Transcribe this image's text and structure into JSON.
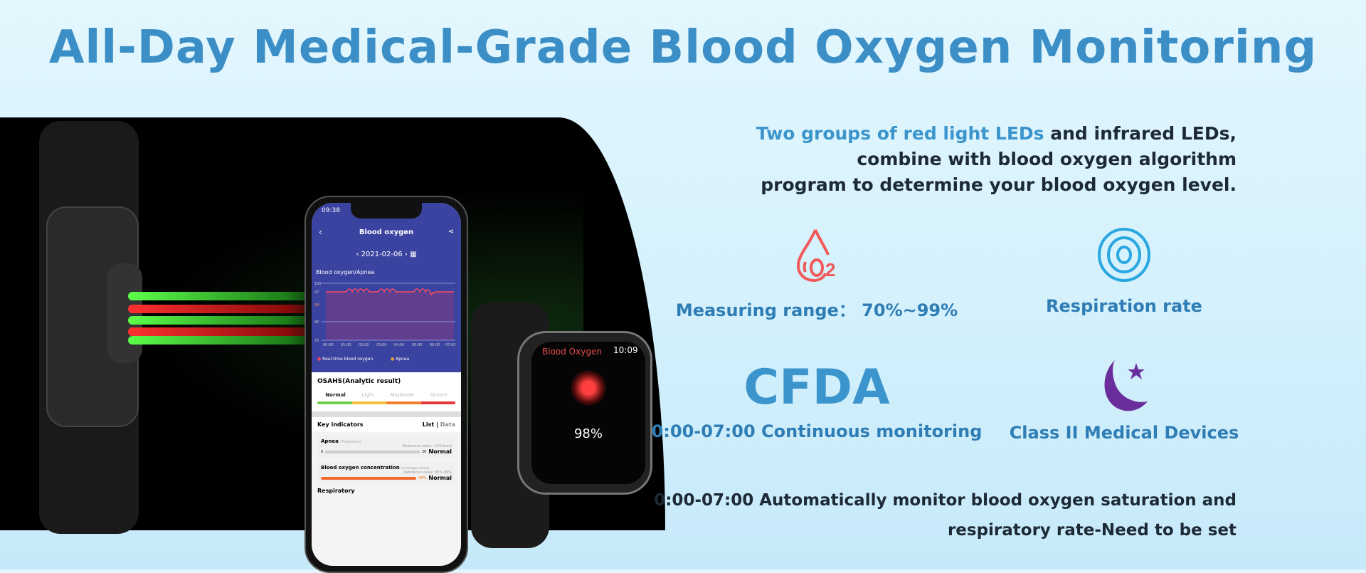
{
  "title": "All-Day Medical-Grade Blood Oxygen Monitoring",
  "intro": {
    "highlight": "Two groups of red light LEDs",
    "line1_rest": " and infrared LEDs,",
    "line2": "combine with blood oxygen algorithm",
    "line3": "program to determine your blood oxygen level."
  },
  "features": [
    {
      "icon": "o2-drop-icon",
      "label": "Measuring range：  70%~99%",
      "color": "#f05a5a"
    },
    {
      "icon": "respiration-rings-icon",
      "label": "Respiration rate",
      "color": "#2aa6e0"
    },
    {
      "icon": "cfda-text",
      "text": "CFDA",
      "label": "0:00-07:00  Continuous monitoring",
      "color": "#3b95cc"
    },
    {
      "icon": "moon-star-icon",
      "label": "Class II Medical Devices",
      "color": "#6a2e9c"
    }
  ],
  "bottom": {
    "line1": "0:00-07:00 Automatically monitor blood oxygen saturation and",
    "line2": "respiratory rate-Need to be set"
  },
  "phone": {
    "time": "09:38",
    "title": "Blood oxygen",
    "date": "2021-02-06",
    "chart_title": "Blood oxygen/Apnea",
    "y_ticks": [
      "100",
      "97",
      "94",
      "90",
      "70"
    ],
    "x_ticks": [
      "00:00",
      "01:00",
      "02:00",
      "03:00",
      "04:00",
      "05:00",
      "06:00",
      "07:00"
    ],
    "legend": [
      "Real-time blood oxygen",
      "Apnea"
    ],
    "osahs_title": "OSAHS(Analytic result)",
    "levels": [
      "Normal",
      "Light",
      "Moderate",
      "Severe"
    ],
    "key_title": "Key indicators",
    "list": "List",
    "data": "Data",
    "apnea": {
      "name": "Apnea",
      "sub": "(Frequency)",
      "ref": "Reference value: ≤7(times)",
      "min": "0",
      "max": "20",
      "status": "Normal"
    },
    "spo2": {
      "name": "Blood oxygen concentration",
      "sub": "(average value)",
      "ref": "Reference value: 95%-99%",
      "value": "98%",
      "status": "Normal"
    },
    "resp": "Respiratory"
  },
  "watch": {
    "label": "Blood Oxygen",
    "time": "10:09",
    "value": "98%"
  }
}
